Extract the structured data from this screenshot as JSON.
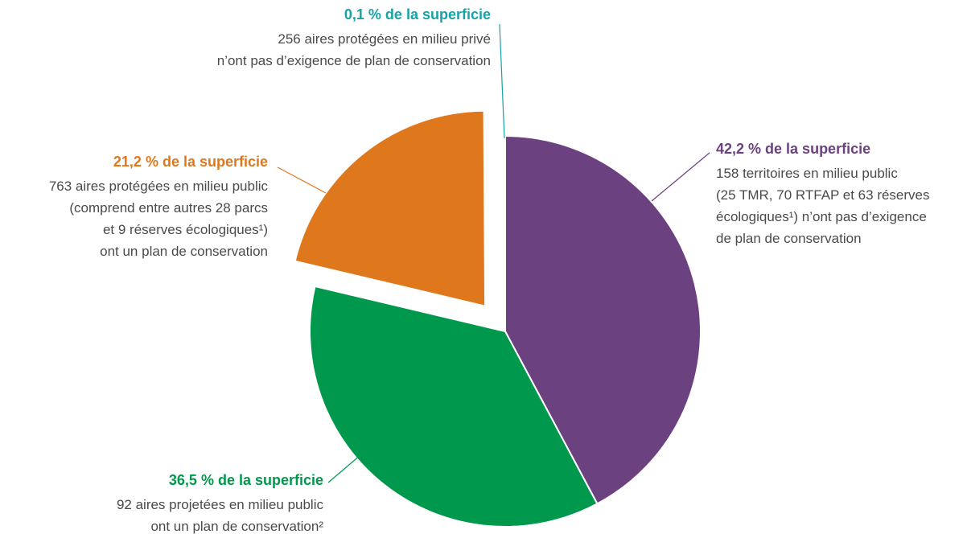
{
  "chart_data": {
    "type": "pie",
    "values": [
      42.2,
      36.5,
      21.2,
      0.1
    ],
    "value_labels": [
      "42,2 % de la superficie",
      "36,5 % de la superficie",
      "21,2 % de la superficie",
      "0,1 % de la superficie"
    ],
    "colors": [
      "#6b417f",
      "#00984c",
      "#df781d",
      "#17a2a8"
    ],
    "descriptions": [
      [
        "158 territoires en milieu public",
        "(25 TMR, 70 RTFAP et 63 réserves",
        "écologiques¹) n’ont pas d’exigence",
        "de plan de conservation"
      ],
      [
        "92 aires projetées en milieu public",
        "ont un plan de conservation²"
      ],
      [
        "763 aires protégées en milieu public",
        "(comprend entre autres 28 parcs",
        "et 9 réserves écologiques¹)",
        "ont un plan de conservation"
      ],
      [
        "256 aires protégées en milieu privé",
        "n’ont pas d’exigence de plan de conservation"
      ]
    ]
  }
}
